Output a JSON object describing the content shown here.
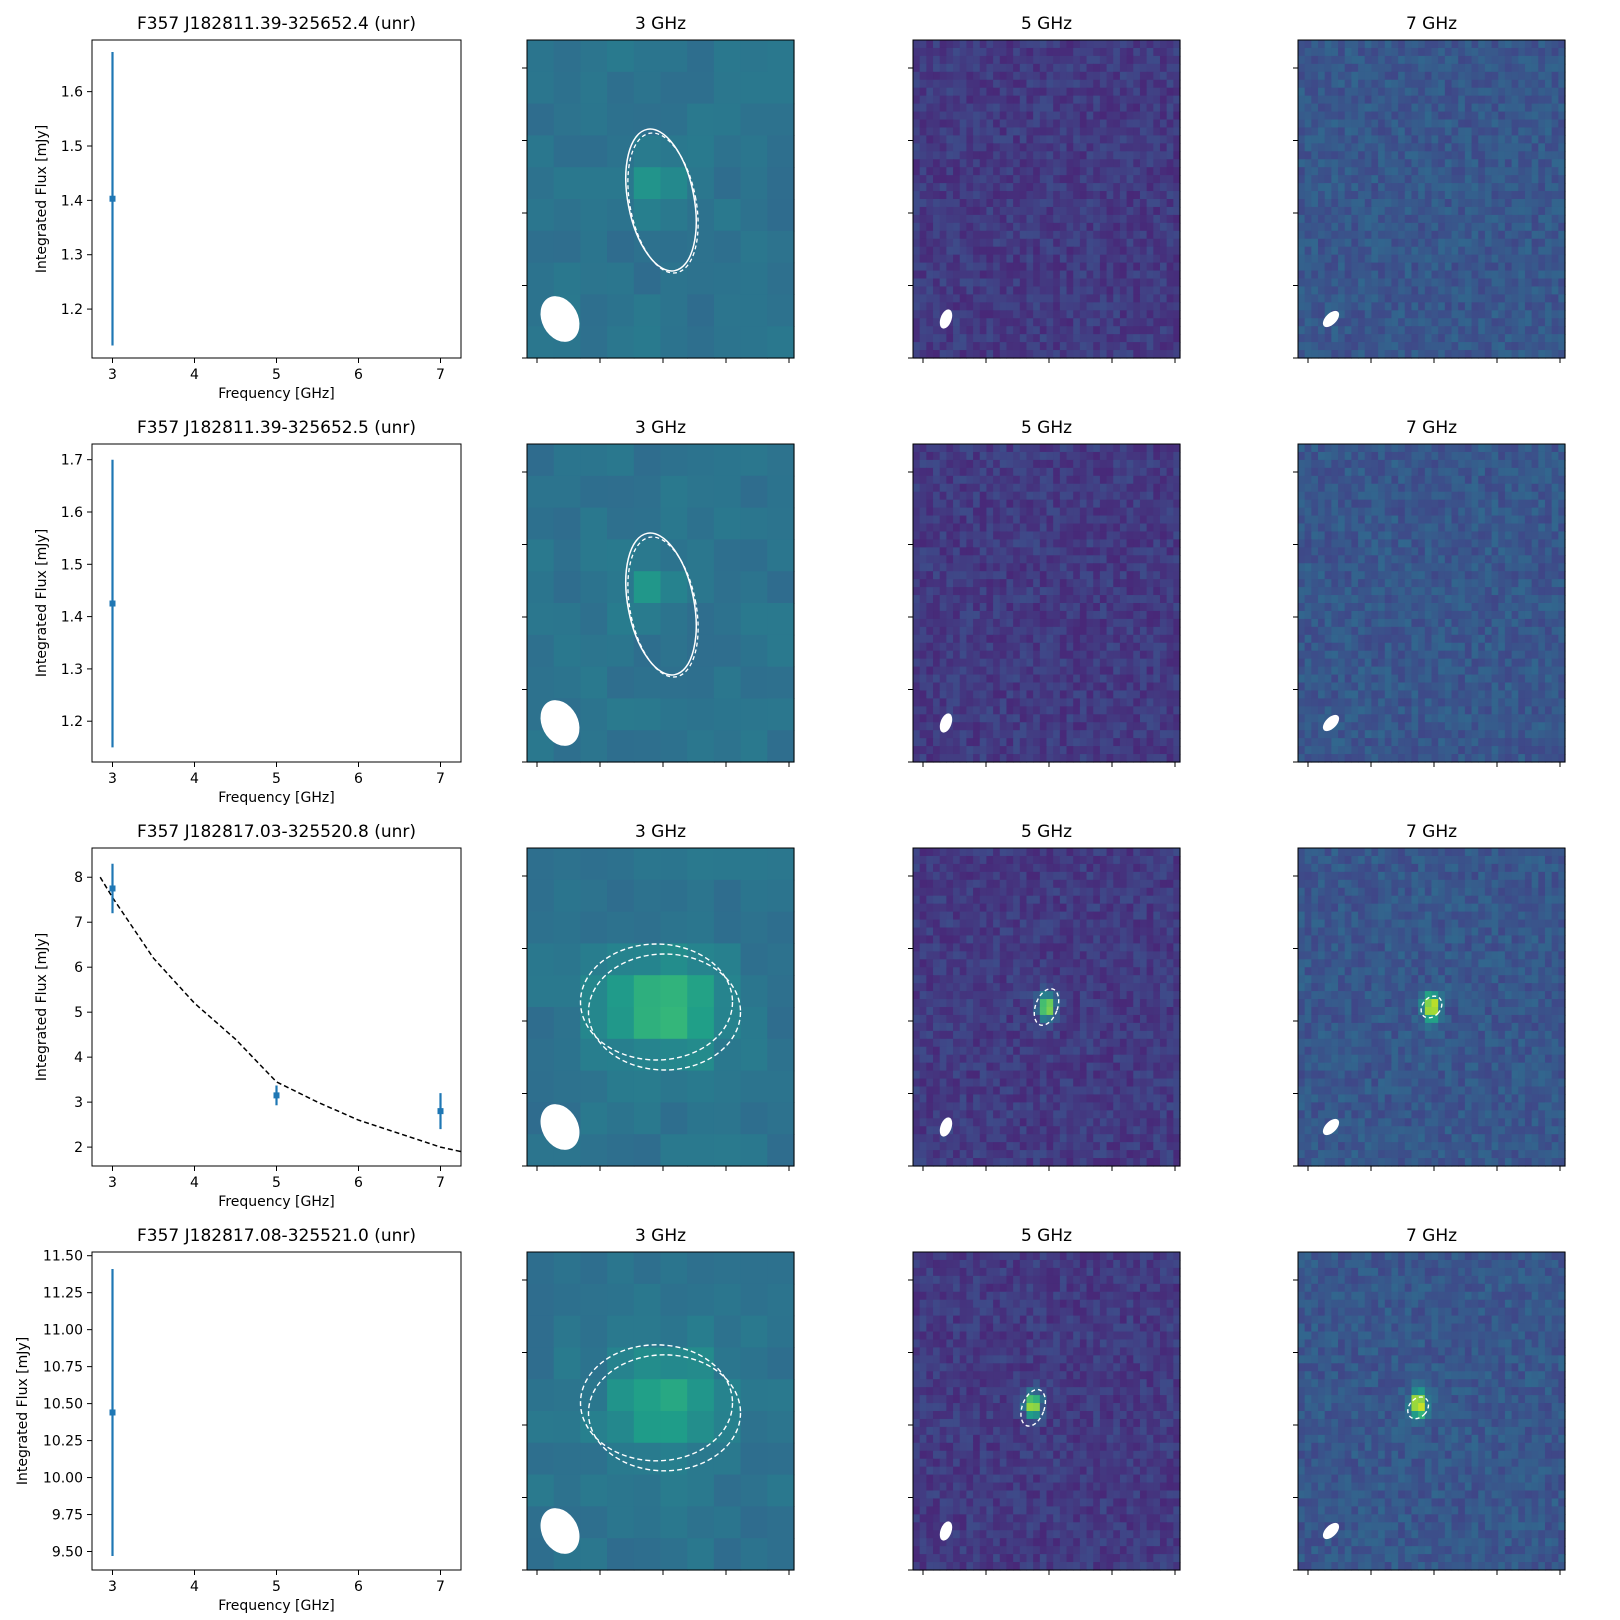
{
  "figure": {
    "rows": [
      {
        "source_title": "F357 J182811.39-325652.4 (unr)",
        "panel_titles": [
          "3 GHz",
          "5 GHz",
          "7 GHz"
        ],
        "chart_data": {
          "type": "scatter",
          "title": "F357 J182811.39-325652.4 (unr)",
          "xlabel": "Frequency [GHz]",
          "ylabel": "Integrated Flux [mJy]",
          "xlim": [
            2.75,
            7.25
          ],
          "ylim": [
            1.11,
            1.695
          ],
          "xticks": [
            3,
            4,
            5,
            6,
            7
          ],
          "yticks": [
            1.2,
            1.3,
            1.4,
            1.5,
            1.6
          ],
          "ytick_labels": [
            "1.2",
            "1.3",
            "1.4",
            "1.5",
            "1.6"
          ],
          "series": [
            {
              "x": [
                3
              ],
              "y": [
                1.403
              ],
              "yerr": [
                0.27
              ],
              "color": "#1f77b4"
            }
          ],
          "fit": null
        }
      },
      {
        "source_title": "F357 J182811.39-325652.5 (unr)",
        "panel_titles": [
          "3 GHz",
          "5 GHz",
          "7 GHz"
        ],
        "chart_data": {
          "type": "scatter",
          "title": "F357 J182811.39-325652.5 (unr)",
          "xlabel": "Frequency [GHz]",
          "ylabel": "Integrated Flux [mJy]",
          "xlim": [
            2.75,
            7.25
          ],
          "ylim": [
            1.122,
            1.73
          ],
          "xticks": [
            3,
            4,
            5,
            6,
            7
          ],
          "yticks": [
            1.2,
            1.3,
            1.4,
            1.5,
            1.6,
            1.7
          ],
          "ytick_labels": [
            "1.2",
            "1.3",
            "1.4",
            "1.5",
            "1.6",
            "1.7"
          ],
          "series": [
            {
              "x": [
                3
              ],
              "y": [
                1.425
              ],
              "yerr": [
                0.275
              ],
              "color": "#1f77b4"
            }
          ],
          "fit": null
        }
      },
      {
        "source_title": "F357 J182817.03-325520.8 (unr)",
        "panel_titles": [
          "3 GHz",
          "5 GHz",
          "7 GHz"
        ],
        "chart_data": {
          "type": "scatter",
          "title": "F357 J182817.03-325520.8 (unr)",
          "xlabel": "Frequency [GHz]",
          "ylabel": "Integrated Flux [mJy]",
          "xlim": [
            2.75,
            7.25
          ],
          "ylim": [
            1.58,
            8.65
          ],
          "xticks": [
            3,
            4,
            5,
            6,
            7
          ],
          "yticks": [
            2,
            3,
            4,
            5,
            6,
            7,
            8
          ],
          "ytick_labels": [
            "2",
            "3",
            "4",
            "5",
            "6",
            "7",
            "8"
          ],
          "series": [
            {
              "x": [
                3,
                5,
                7
              ],
              "y": [
                7.75,
                3.15,
                2.8
              ],
              "yerr": [
                0.55,
                0.22,
                0.4
              ],
              "color": "#1f77b4"
            }
          ],
          "fit": {
            "type": "power-law",
            "x": [
              2.85,
              3.0,
              3.5,
              4.0,
              4.5,
              5.0,
              5.5,
              6.0,
              6.5,
              7.0,
              7.25
            ],
            "y": [
              8.0,
              7.55,
              6.2,
              5.2,
              4.4,
              3.45,
              3.0,
              2.6,
              2.3,
              2.0,
              1.9
            ]
          }
        }
      },
      {
        "source_title": "F357 J182817.08-325521.0 (unr)",
        "panel_titles": [
          "3 GHz",
          "5 GHz",
          "7 GHz"
        ],
        "chart_data": {
          "type": "scatter",
          "title": "F357 J182817.08-325521.0 (unr)",
          "xlabel": "Frequency [GHz]",
          "ylabel": "Integrated Flux [mJy]",
          "xlim": [
            2.75,
            7.25
          ],
          "ylim": [
            9.375,
            11.525
          ],
          "xticks": [
            3,
            4,
            5,
            6,
            7
          ],
          "yticks": [
            9.5,
            9.75,
            10.0,
            10.25,
            10.5,
            10.75,
            11.0,
            11.25,
            11.5
          ],
          "ytick_labels": [
            "9.50",
            "9.75",
            "10.00",
            "10.25",
            "10.50",
            "10.75",
            "11.00",
            "11.25",
            "11.50"
          ],
          "series": [
            {
              "x": [
                3
              ],
              "y": [
                10.44
              ],
              "yerr": [
                0.97
              ],
              "color": "#1f77b4"
            }
          ],
          "fit": null
        }
      }
    ]
  }
}
